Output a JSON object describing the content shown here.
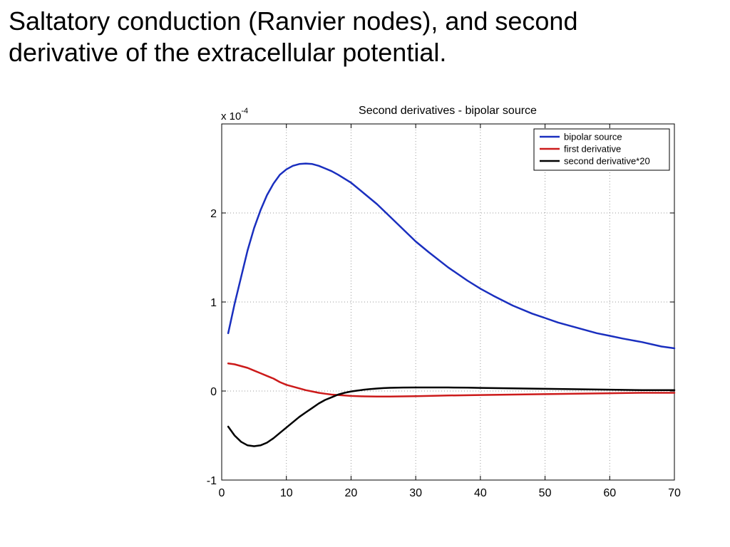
{
  "slide": {
    "title_line1": "Saltatory conduction (Ranvier nodes), and second",
    "title_line2": "derivative of the extracellular potential."
  },
  "chart_data": {
    "type": "line",
    "title": "Second derivatives - bipolar source",
    "xlabel": "",
    "ylabel": "",
    "y_scale_label_base": "x 10",
    "y_scale_label_exp": "-4",
    "xlim": [
      0,
      70
    ],
    "ylim": [
      -1,
      3
    ],
    "xticks": [
      0,
      10,
      20,
      30,
      40,
      50,
      60,
      70
    ],
    "yticks": [
      -1,
      0,
      1,
      2
    ],
    "ytick_labels": [
      "-1",
      "0",
      "1",
      "2"
    ],
    "grid": true,
    "legend_position": "top-right",
    "series": [
      {
        "name": "bipolar source",
        "color": "#1a2fbf",
        "x": [
          1,
          2,
          3,
          4,
          5,
          6,
          7,
          8,
          9,
          10,
          11,
          12,
          13,
          14,
          15,
          16,
          17,
          18,
          20,
          22,
          24,
          26,
          28,
          30,
          32,
          35,
          38,
          40,
          42,
          45,
          48,
          50,
          52,
          55,
          58,
          60,
          62,
          65,
          68,
          70
        ],
        "y": [
          0.65,
          0.98,
          1.28,
          1.58,
          1.83,
          2.03,
          2.2,
          2.33,
          2.43,
          2.49,
          2.53,
          2.55,
          2.555,
          2.55,
          2.53,
          2.5,
          2.47,
          2.43,
          2.34,
          2.22,
          2.1,
          1.96,
          1.82,
          1.68,
          1.56,
          1.39,
          1.24,
          1.15,
          1.07,
          0.96,
          0.87,
          0.82,
          0.77,
          0.71,
          0.65,
          0.62,
          0.59,
          0.55,
          0.5,
          0.48
        ]
      },
      {
        "name": "first derivative",
        "color": "#cc1a1a",
        "x": [
          1,
          2,
          3,
          4,
          5,
          6,
          7,
          8,
          9,
          10,
          11,
          12,
          13,
          14,
          15,
          16,
          17,
          18,
          19,
          20,
          22,
          24,
          26,
          28,
          30,
          32,
          35,
          40,
          45,
          50,
          55,
          60,
          65,
          70
        ],
        "y": [
          0.31,
          0.3,
          0.28,
          0.26,
          0.23,
          0.2,
          0.17,
          0.14,
          0.1,
          0.07,
          0.05,
          0.03,
          0.01,
          -0.005,
          -0.02,
          -0.03,
          -0.04,
          -0.045,
          -0.05,
          -0.055,
          -0.06,
          -0.062,
          -0.062,
          -0.06,
          -0.058,
          -0.055,
          -0.05,
          -0.045,
          -0.04,
          -0.035,
          -0.03,
          -0.025,
          -0.02,
          -0.02
        ]
      },
      {
        "name": "second derivative*20",
        "color": "#000000",
        "x": [
          1,
          2,
          3,
          4,
          5,
          6,
          7,
          8,
          9,
          10,
          11,
          12,
          13,
          14,
          15,
          16,
          17,
          18,
          19,
          20,
          21,
          22,
          23,
          24,
          25,
          26,
          28,
          30,
          32,
          35,
          38,
          40,
          45,
          50,
          55,
          60,
          65,
          70
        ],
        "y": [
          -0.4,
          -0.5,
          -0.57,
          -0.61,
          -0.62,
          -0.61,
          -0.58,
          -0.53,
          -0.47,
          -0.41,
          -0.35,
          -0.29,
          -0.24,
          -0.19,
          -0.14,
          -0.1,
          -0.07,
          -0.04,
          -0.02,
          -0.005,
          0.005,
          0.015,
          0.022,
          0.028,
          0.033,
          0.036,
          0.039,
          0.04,
          0.04,
          0.04,
          0.038,
          0.035,
          0.03,
          0.025,
          0.02,
          0.015,
          0.01,
          0.01
        ]
      }
    ]
  }
}
